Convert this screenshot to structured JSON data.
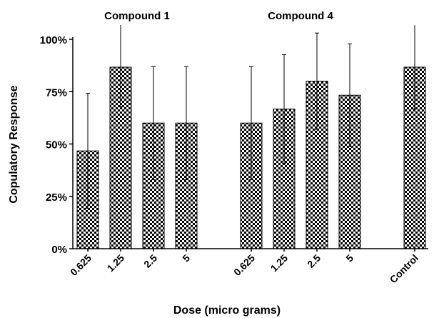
{
  "chart_data": {
    "type": "bar",
    "xlabel": "Dose (micro grams)",
    "ylabel": "Copulatory Response",
    "ylim": [
      0,
      1
    ],
    "yticks": [
      "0%",
      "25%",
      "50%",
      "75%",
      "100%"
    ],
    "grid": false,
    "bar_fill": "checkerboard",
    "colors": {
      "bar_dark": "#000000",
      "bar_light": "#ffffff",
      "axis": "#000000"
    },
    "groups": [
      {
        "label": "Compound 1",
        "categories": [
          "0.625",
          "1.25",
          "2.5",
          "5"
        ],
        "values": [
          0.467,
          0.867,
          0.6,
          0.6
        ],
        "error_plus": [
          0.275,
          0.21,
          0.27,
          0.27
        ],
        "error_minus": [
          0.275,
          0.19,
          0.27,
          0.27
        ]
      },
      {
        "label": "Compound 4",
        "categories": [
          "0.625",
          "1.25",
          "2.5",
          "5"
        ],
        "values": [
          0.6,
          0.667,
          0.8,
          0.733
        ],
        "error_plus": [
          0.27,
          0.26,
          0.23,
          0.245
        ],
        "error_minus": [
          0.27,
          0.26,
          0.23,
          0.245
        ]
      },
      {
        "label": "",
        "categories": [
          "Control"
        ],
        "values": [
          0.867
        ],
        "error_plus": [
          0.2
        ],
        "error_minus": [
          0.2
        ]
      }
    ]
  }
}
